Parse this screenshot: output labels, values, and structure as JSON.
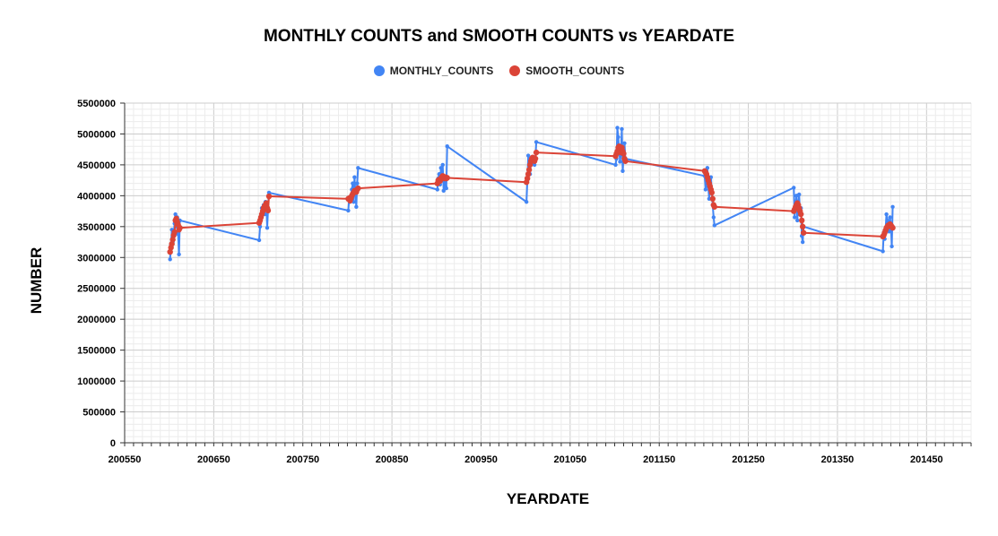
{
  "chart_data": {
    "type": "line",
    "title": "MONTHLY COUNTS and SMOOTH COUNTS vs YEARDATE",
    "xlabel": "YEARDATE",
    "ylabel": "NUMBER",
    "xlim": [
      200550,
      201500
    ],
    "ylim": [
      0,
      5500000
    ],
    "x_ticks": [
      200550,
      200650,
      200750,
      200850,
      200950,
      201050,
      201150,
      201250,
      201350,
      201450
    ],
    "y_ticks": [
      0,
      500000,
      1000000,
      1500000,
      2000000,
      2500000,
      3000000,
      3500000,
      4000000,
      4500000,
      5000000,
      5500000
    ],
    "grid": true,
    "legend_position": "top",
    "series": [
      {
        "name": "MONTHLY_COUNTS",
        "color": "#4285f4",
        "x": [
          200601,
          200602,
          200603,
          200604,
          200605,
          200606,
          200607,
          200608,
          200609,
          200610,
          200611,
          200612,
          200701,
          200702,
          200703,
          200704,
          200705,
          200706,
          200707,
          200708,
          200709,
          200710,
          200711,
          200712,
          200801,
          200802,
          200803,
          200804,
          200805,
          200806,
          200807,
          200808,
          200809,
          200810,
          200811,
          200812,
          200901,
          200902,
          200903,
          200904,
          200905,
          200906,
          200907,
          200908,
          200909,
          200910,
          200911,
          200912,
          201001,
          201002,
          201003,
          201004,
          201005,
          201006,
          201007,
          201008,
          201009,
          201010,
          201011,
          201012,
          201101,
          201102,
          201103,
          201104,
          201105,
          201106,
          201107,
          201108,
          201109,
          201110,
          201111,
          201112,
          201201,
          201202,
          201203,
          201204,
          201205,
          201206,
          201207,
          201208,
          201209,
          201210,
          201211,
          201212,
          201301,
          201302,
          201303,
          201304,
          201305,
          201306,
          201307,
          201308,
          201309,
          201310,
          201311,
          201312,
          201401,
          201402,
          201403,
          201404,
          201405,
          201406,
          201407,
          201408,
          201409,
          201410,
          201411,
          201412
        ],
        "values": [
          2970000,
          3200000,
          3450000,
          3250000,
          3350000,
          3550000,
          3700000,
          3500000,
          3650000,
          3380000,
          3050000,
          3600000,
          3280000,
          3500000,
          3650000,
          3800000,
          3750000,
          3850000,
          3700000,
          3900000,
          3850000,
          3480000,
          3800000,
          4050000,
          3760000,
          3950000,
          3900000,
          4000000,
          4100000,
          4200000,
          3900000,
          4300000,
          4050000,
          3820000,
          4200000,
          4450000,
          4100000,
          4280000,
          4350000,
          4180000,
          4450000,
          4300000,
          4500000,
          4080000,
          4250000,
          4150000,
          4120000,
          4800000,
          3900000,
          4250000,
          4650000,
          4400000,
          4350000,
          4600000,
          4520000,
          4550000,
          4600000,
          4500000,
          4580000,
          4870000,
          4500000,
          4600000,
          5100000,
          4950000,
          4750000,
          4550000,
          4700000,
          5080000,
          4400000,
          4650000,
          4850000,
          4600000,
          4320000,
          4100000,
          4300000,
          4450000,
          4150000,
          3950000,
          4200000,
          4300000,
          4050000,
          3850000,
          3650000,
          3520000,
          4130000,
          3650000,
          3850000,
          4000000,
          3600000,
          3900000,
          4020000,
          3700000,
          3800000,
          3350000,
          3250000,
          3500000,
          3100000,
          3400000,
          3300000,
          3450000,
          3700000,
          3600000,
          3550000,
          3420000,
          3650000,
          3500000,
          3180000,
          3820000
        ]
      },
      {
        "name": "SMOOTH_COUNTS",
        "color": "#db4437",
        "x": [
          200601,
          200602,
          200603,
          200604,
          200605,
          200606,
          200607,
          200608,
          200609,
          200610,
          200611,
          200612,
          200701,
          200702,
          200703,
          200704,
          200705,
          200706,
          200707,
          200708,
          200709,
          200710,
          200711,
          200712,
          200801,
          200802,
          200803,
          200804,
          200805,
          200806,
          200807,
          200808,
          200809,
          200810,
          200811,
          200812,
          200901,
          200902,
          200903,
          200904,
          200905,
          200906,
          200907,
          200908,
          200909,
          200910,
          200911,
          200912,
          201001,
          201002,
          201003,
          201004,
          201005,
          201006,
          201007,
          201008,
          201009,
          201010,
          201011,
          201012,
          201101,
          201102,
          201103,
          201104,
          201105,
          201106,
          201107,
          201108,
          201109,
          201110,
          201111,
          201112,
          201201,
          201202,
          201203,
          201204,
          201205,
          201206,
          201207,
          201208,
          201209,
          201210,
          201211,
          201212,
          201301,
          201302,
          201303,
          201304,
          201305,
          201306,
          201307,
          201308,
          201309,
          201310,
          201311,
          201312,
          201401,
          201402,
          201403,
          201404,
          201405,
          201406,
          201407,
          201408,
          201409,
          201410,
          201411,
          201412
        ],
        "values": [
          3090000,
          3160000,
          3220000,
          3290000,
          3360000,
          3410000,
          3600000,
          3630000,
          3580000,
          3530000,
          3450000,
          3480000,
          3560000,
          3600000,
          3650000,
          3700000,
          3750000,
          3800000,
          3830000,
          3850000,
          3880000,
          3800000,
          3760000,
          3990000,
          3950000,
          3960000,
          3920000,
          3960000,
          4000000,
          4030000,
          4050000,
          4080000,
          4070000,
          4060000,
          4100000,
          4120000,
          4200000,
          4250000,
          4260000,
          4240000,
          4280000,
          4300000,
          4320000,
          4310000,
          4280000,
          4300000,
          4280000,
          4290000,
          4220000,
          4280000,
          4350000,
          4420000,
          4500000,
          4560000,
          4600000,
          4620000,
          4580000,
          4560000,
          4600000,
          4700000,
          4640000,
          4680000,
          4720000,
          4780000,
          4800000,
          4750000,
          4700000,
          4780000,
          4720000,
          4680000,
          4600000,
          4560000,
          4400000,
          4380000,
          4350000,
          4300000,
          4250000,
          4200000,
          4150000,
          4100000,
          4050000,
          3950000,
          3850000,
          3820000,
          3750000,
          3780000,
          3820000,
          3850000,
          3880000,
          3850000,
          3800000,
          3750000,
          3700000,
          3600000,
          3500000,
          3400000,
          3340000,
          3360000,
          3400000,
          3440000,
          3480000,
          3500000,
          3520000,
          3510000,
          3540000,
          3520000,
          3500000,
          3480000
        ]
      }
    ]
  }
}
